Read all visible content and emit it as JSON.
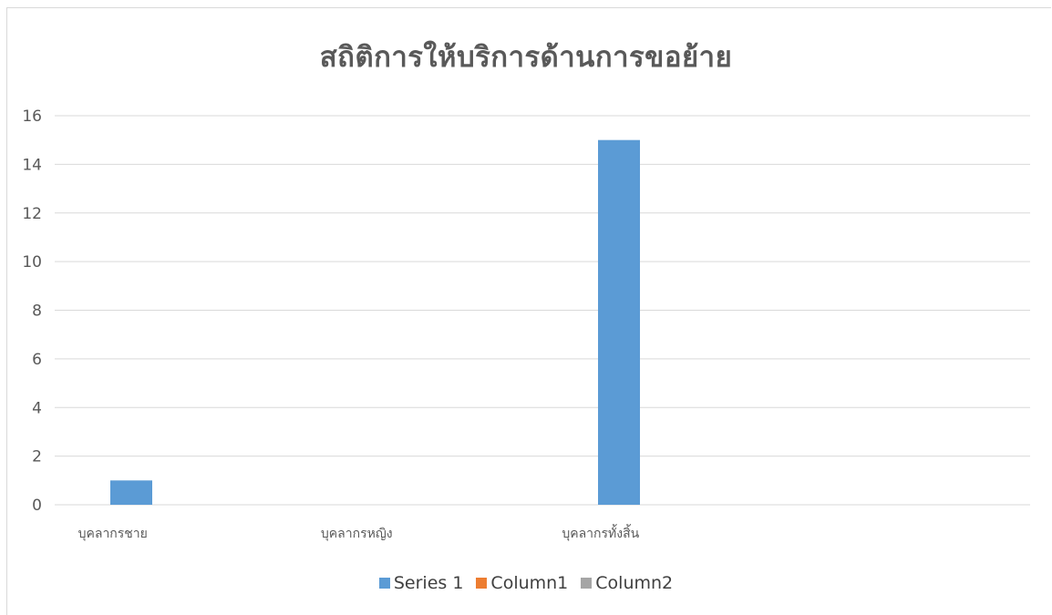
{
  "chart_data": {
    "type": "bar",
    "title": "สถิติการให้บริการด้านการขอย้าย",
    "xlabel": "",
    "ylabel": "",
    "categories": [
      "บุคลากรชาย",
      "บุคลากรหญิง",
      "บุคลากรทั้งสิ้น",
      ""
    ],
    "series": [
      {
        "name": "Series 1",
        "color": "#5b9bd5",
        "values": [
          1,
          0,
          15,
          null
        ]
      },
      {
        "name": "Column1",
        "color": "#ed7d31",
        "values": [
          null,
          null,
          null,
          null
        ]
      },
      {
        "name": "Column2",
        "color": "#a5a5a5",
        "values": [
          null,
          null,
          null,
          null
        ]
      }
    ],
    "ylim": [
      0,
      16
    ],
    "yticks": [
      "0",
      "2",
      "4",
      "6",
      "8",
      "10",
      "12",
      "14",
      "16"
    ],
    "grid": true,
    "legend_position": "bottom"
  }
}
